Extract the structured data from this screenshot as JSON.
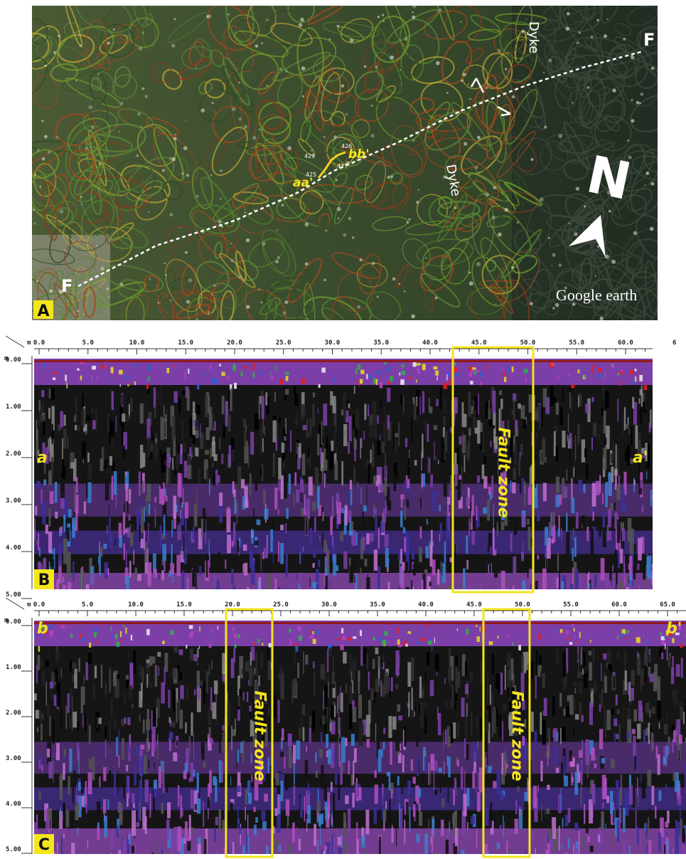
{
  "panel_a": {
    "label": "A",
    "dyke_labels": [
      "Dyke",
      "Dyke"
    ],
    "fault_labels": [
      "F",
      "F"
    ],
    "profile_labels": [
      "aa'",
      "bb'"
    ],
    "elevations": [
      "429",
      "427",
      "425",
      "426"
    ],
    "north": "N",
    "watermark": "Google earth"
  },
  "panel_b": {
    "label": "B",
    "distance_unit": "m",
    "depth_unit": "m",
    "distance_ticks": [
      "0.0",
      "5.0",
      "10.0",
      "15.0",
      "20.0",
      "25.0",
      "30.0",
      "35.0",
      "40.0",
      "45.0",
      "50.0",
      "55.0",
      "60.0",
      "6"
    ],
    "depth_ticks": [
      "0.00",
      "1.00",
      "2.00",
      "3.00",
      "4.00",
      "5.00"
    ],
    "ends": [
      "a",
      "a'"
    ],
    "zones": [
      "Fault zone"
    ]
  },
  "panel_c": {
    "label": "C",
    "distance_unit": "m",
    "depth_unit": "m",
    "distance_ticks": [
      "0.0",
      "5.0",
      "10.0",
      "15.0",
      "20.0",
      "25.0",
      "30.0",
      "35.0",
      "40.0",
      "45.0",
      "50.0",
      "55.0",
      "60.0",
      "65.0"
    ],
    "depth_ticks": [
      "0.00",
      "1.00",
      "2.00",
      "3.00",
      "4.00",
      "5.00"
    ],
    "ends": [
      "b",
      "b'"
    ],
    "zones": [
      "Fault zone",
      "Fault zone"
    ]
  }
}
